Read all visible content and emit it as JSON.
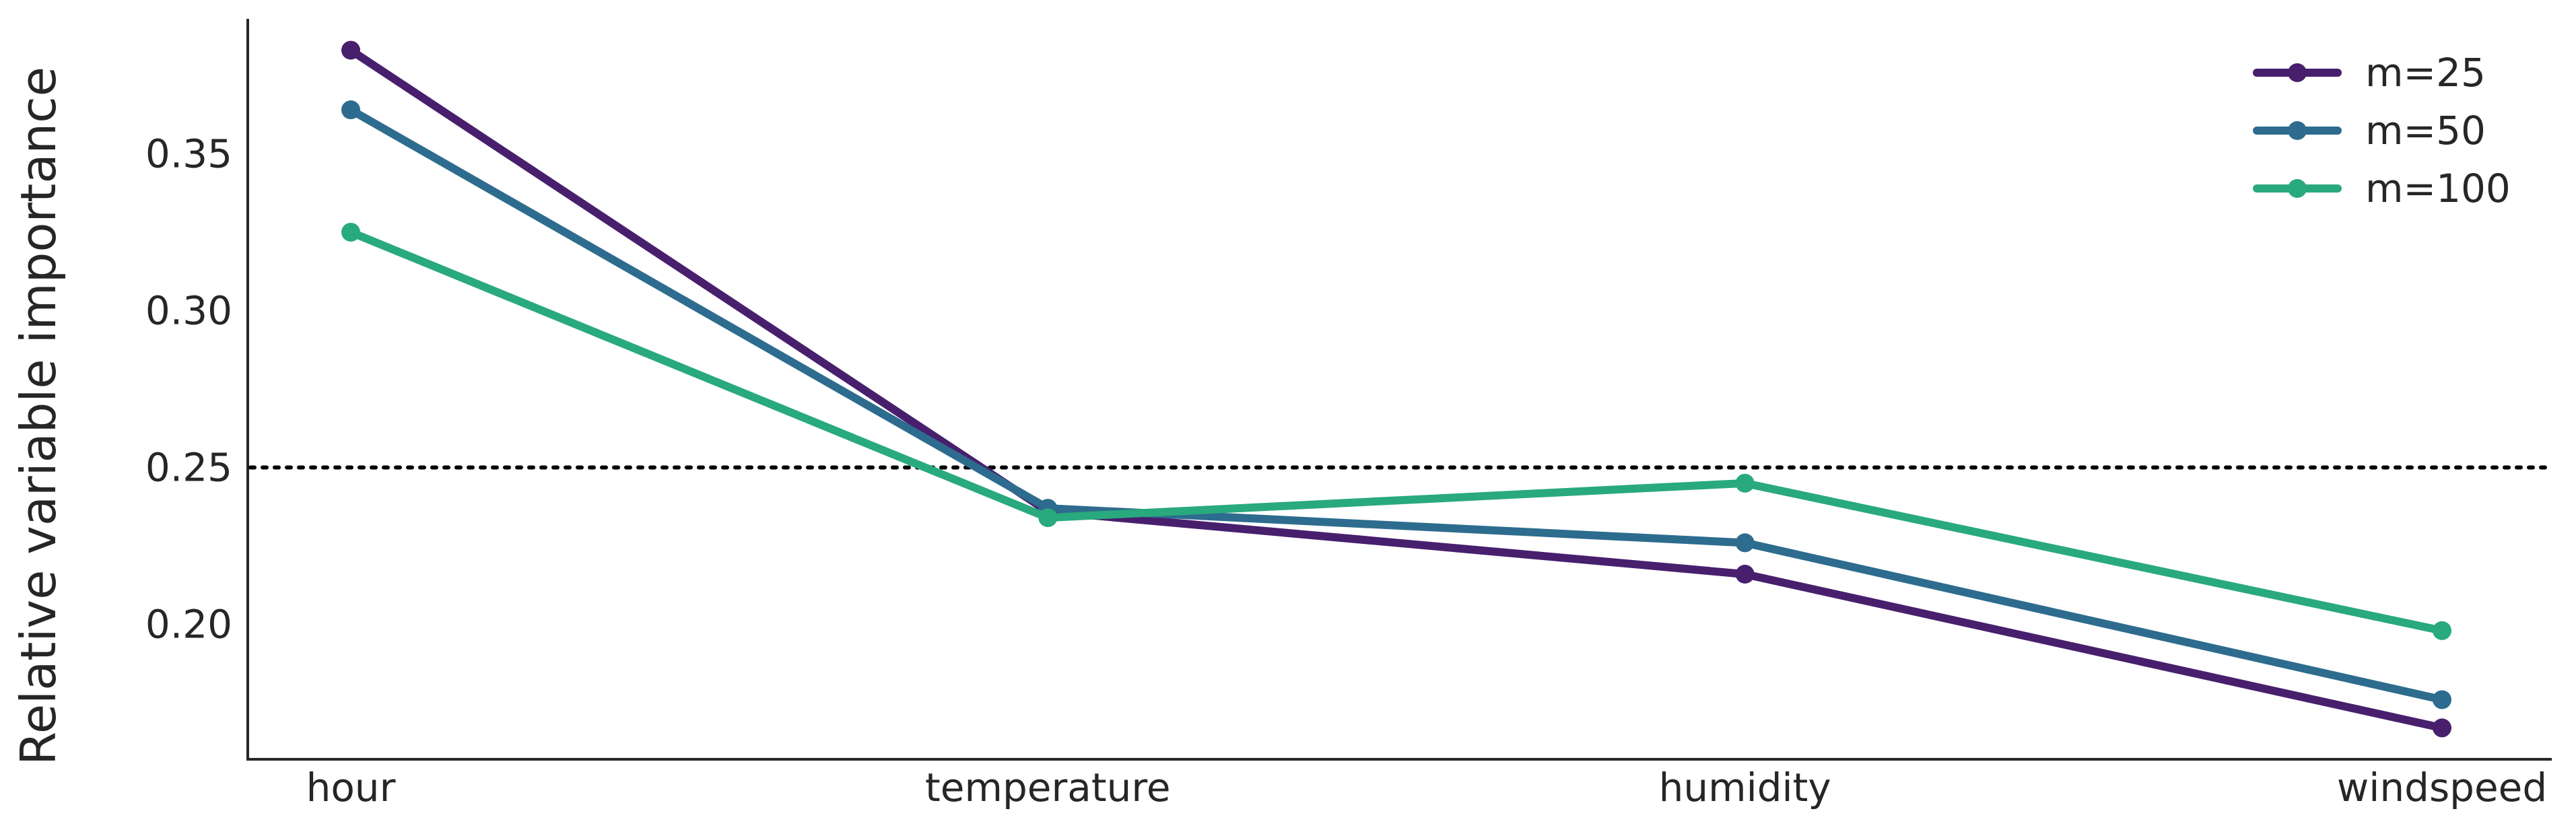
{
  "chart_data": {
    "type": "line",
    "title": "",
    "xlabel": "",
    "ylabel": "Relative variable importance",
    "categories": [
      "hour",
      "temperature",
      "humidity",
      "windspeed"
    ],
    "ylim": [
      0.157,
      0.393
    ],
    "yticks": [
      0.2,
      0.25,
      0.3,
      0.35
    ],
    "ytick_labels": [
      "0.20",
      "0.25",
      "0.30",
      "0.35"
    ],
    "reference_line": {
      "y": 0.25,
      "style": "dotted",
      "color": "#000000"
    },
    "grid": false,
    "legend_position": "top-right",
    "series": [
      {
        "name": "m=25",
        "color": "#481f6d",
        "values": [
          0.383,
          0.236,
          0.216,
          0.167
        ]
      },
      {
        "name": "m=50",
        "color": "#2d6c8e",
        "values": [
          0.364,
          0.237,
          0.226,
          0.176
        ]
      },
      {
        "name": "m=100",
        "color": "#29a97e",
        "values": [
          0.325,
          0.234,
          0.245,
          0.198
        ]
      }
    ]
  }
}
